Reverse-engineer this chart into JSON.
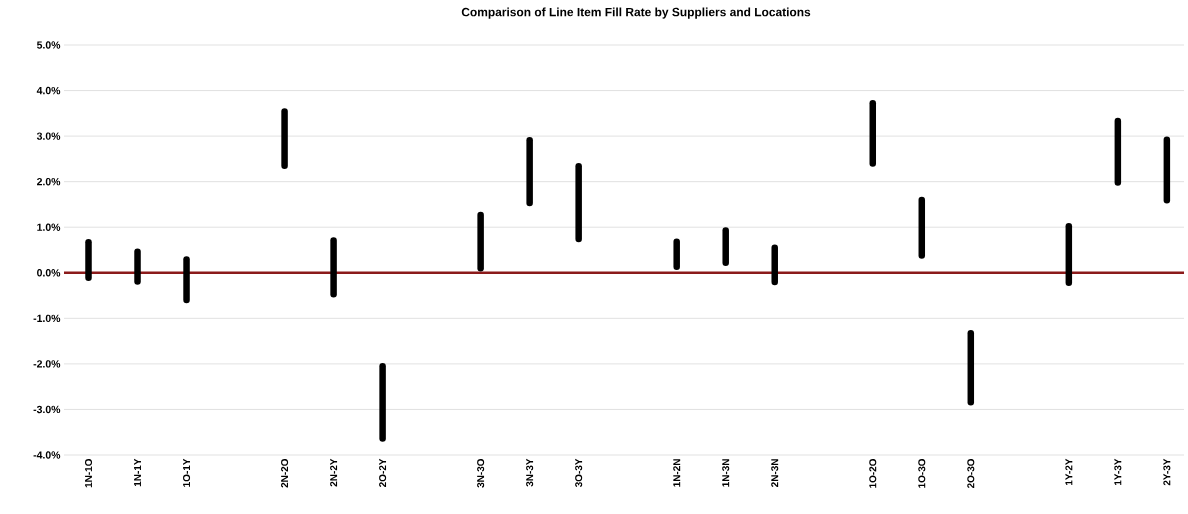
{
  "chart_data": {
    "type": "bar",
    "title": "Comparison of Line Item Fill Rate by Suppliers and Locations",
    "categories": [
      "1N-1O",
      "1N-1Y",
      "1O-1Y",
      null,
      "2N-2O",
      "2N-2Y",
      "2O-2Y",
      null,
      "3N-3O",
      "3N-3Y",
      "3O-3Y",
      null,
      "1N-2N",
      "1N-3N",
      "2N-3N",
      null,
      "1O-2O",
      "1O-3O",
      "2O-3O",
      null,
      "1Y-2Y",
      "1Y-3Y",
      "2Y-3Y"
    ],
    "base": [
      -0.11,
      -0.19,
      -0.6,
      null,
      2.35,
      -0.47,
      -3.64,
      null,
      0.1,
      1.53,
      0.74,
      null,
      0.13,
      0.22,
      -0.2,
      null,
      2.4,
      0.38,
      -2.84,
      null,
      -0.22,
      1.98,
      1.59
    ],
    "values": [
      0.78,
      0.65,
      0.89,
      null,
      1.19,
      1.18,
      1.59,
      null,
      1.17,
      1.38,
      1.6,
      null,
      0.55,
      0.71,
      0.75,
      null,
      1.32,
      1.22,
      1.51,
      null,
      1.24,
      1.35,
      1.33
    ],
    "color": "#000000",
    "ylim": [
      -4,
      5
    ],
    "yticks": [
      {
        "value": -4,
        "label": "-4.0%"
      },
      {
        "value": -3,
        "label": "-3.0%"
      },
      {
        "value": -2,
        "label": "-2.0%"
      },
      {
        "value": -1,
        "label": "-1.0%"
      },
      {
        "value": 0,
        "label": "0.0%"
      },
      {
        "value": 1,
        "label": "1.0%"
      },
      {
        "value": 2,
        "label": "2.0%"
      },
      {
        "value": 3,
        "label": "3.0%"
      },
      {
        "value": 4,
        "label": "4.0%"
      },
      {
        "value": 5,
        "label": "5.0%"
      }
    ],
    "grid": "y",
    "ref_lines": [
      {
        "axis": "y",
        "value": 0,
        "color": "#8b1a1a"
      }
    ]
  }
}
